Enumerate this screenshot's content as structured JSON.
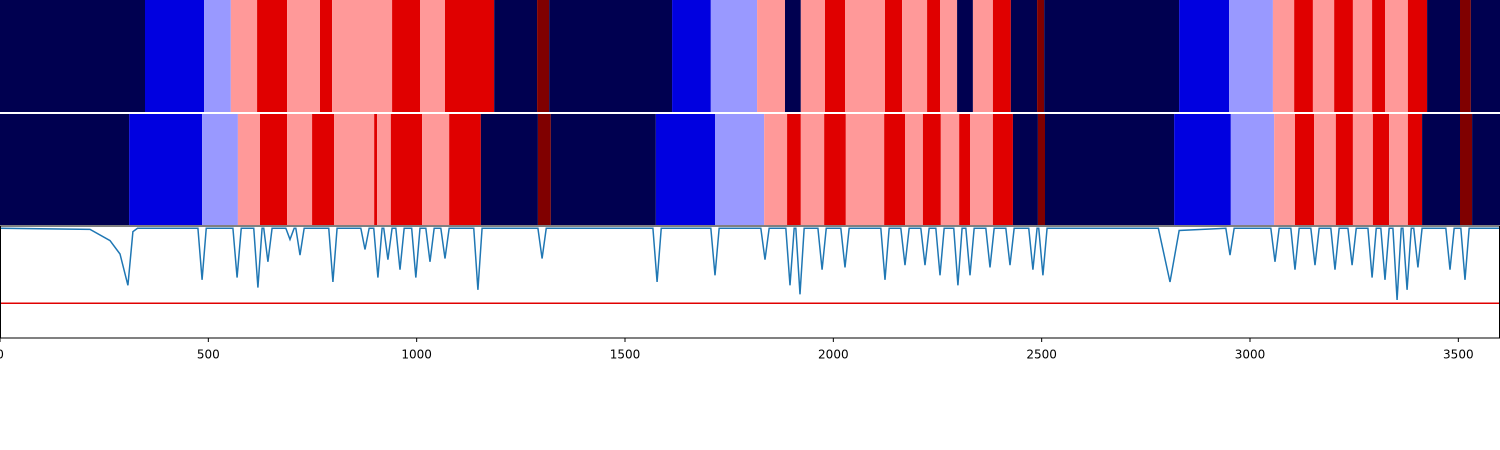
{
  "chart_data": [
    {
      "type": "segments",
      "xlim": [
        0,
        3600
      ],
      "boundaries": [
        0,
        348,
        490,
        554,
        617,
        689,
        768,
        797,
        941,
        1008,
        1068,
        1186,
        1289,
        1318,
        1613,
        1706,
        1817,
        1884,
        1922,
        1980,
        2028,
        2124,
        2165,
        2225,
        2256,
        2297,
        2335,
        2383,
        2426,
        2489,
        2506,
        2830,
        2950,
        3055,
        3106,
        3151,
        3202,
        3247,
        3293,
        3324,
        3379,
        3425,
        3504,
        3530,
        3600
      ],
      "colors": [
        "#000050",
        "#0000e0",
        "#9999ff",
        "#ff9999",
        "#e00000",
        "#ff9999",
        "#e00000",
        "#ff9999",
        "#e00000",
        "#ff9999",
        "#e00000",
        "#000050",
        "#800000",
        "#000050",
        "#0000e0",
        "#9999ff",
        "#ff9999",
        "#000050",
        "#ff9999",
        "#e00000",
        "#ff9999",
        "#e00000",
        "#ff9999",
        "#e00000",
        "#ff9999",
        "#000050",
        "#ff9999",
        "#e00000",
        "#000050",
        "#800000",
        "#000050",
        "#0000e0",
        "#9999ff",
        "#ff9999",
        "#e00000",
        "#ff9999",
        "#e00000",
        "#ff9999",
        "#e00000",
        "#ff9999",
        "#e00000",
        "#000050",
        "#800000",
        "#000050"
      ]
    },
    {
      "type": "segments",
      "xlim": [
        0,
        3600
      ],
      "boundaries": [
        0,
        310,
        485,
        571,
        624,
        689,
        749,
        802,
        898,
        905,
        938,
        1013,
        1078,
        1154,
        1291,
        1322,
        1574,
        1716,
        1834,
        1889,
        1922,
        1978,
        2030,
        2122,
        2172,
        2215,
        2258,
        2302,
        2328,
        2383,
        2431,
        2491,
        2508,
        2818,
        2954,
        3058,
        3108,
        3154,
        3206,
        3247,
        3295,
        3334,
        3379,
        3413,
        3504,
        3533,
        3600
      ],
      "colors": [
        "#000050",
        "#0000e0",
        "#9999ff",
        "#ff9999",
        "#e00000",
        "#ff9999",
        "#e00000",
        "#ff9999",
        "#e00000",
        "#ff9999",
        "#e00000",
        "#ff9999",
        "#e00000",
        "#000050",
        "#800000",
        "#000050",
        "#0000e0",
        "#9999ff",
        "#ff9999",
        "#e00000",
        "#ff9999",
        "#e00000",
        "#ff9999",
        "#e00000",
        "#ff9999",
        "#e00000",
        "#ff9999",
        "#e00000",
        "#ff9999",
        "#e00000",
        "#000050",
        "#800000",
        "#000050",
        "#0000e0",
        "#9999ff",
        "#ff9999",
        "#e00000",
        "#ff9999",
        "#e00000",
        "#ff9999",
        "#e00000",
        "#ff9999",
        "#e00000",
        "#000050",
        "#800000",
        "#000050"
      ]
    },
    {
      "type": "line",
      "xlim": [
        0,
        3600
      ],
      "ylim": [
        0,
        1
      ],
      "xticks": [
        0,
        500,
        1000,
        1500,
        2000,
        2500,
        3000,
        3500
      ],
      "threshold": 0.31,
      "threshold_color": "#e00000",
      "color": "#1f77b4",
      "x": [
        0,
        216,
        264,
        288,
        307,
        319,
        330,
        475,
        485,
        495,
        559,
        569,
        579,
        609,
        619,
        629,
        633,
        643,
        653,
        686,
        696,
        706,
        710,
        720,
        730,
        789,
        799,
        809,
        866,
        876,
        886,
        897,
        907,
        917,
        921,
        931,
        941,
        950,
        960,
        970,
        988,
        998,
        1008,
        1022,
        1032,
        1042,
        1058,
        1068,
        1078,
        1137,
        1147,
        1157,
        1291,
        1301,
        1311,
        1567,
        1577,
        1587,
        1706,
        1716,
        1726,
        1826,
        1836,
        1846,
        1886,
        1896,
        1906,
        1910,
        1920,
        1930,
        1963,
        1973,
        1983,
        2018,
        2028,
        2038,
        2114,
        2124,
        2134,
        2162,
        2172,
        2182,
        2210,
        2220,
        2230,
        2246,
        2256,
        2266,
        2289,
        2299,
        2309,
        2318,
        2328,
        2338,
        2366,
        2376,
        2386,
        2414,
        2424,
        2434,
        2469,
        2479,
        2489,
        2493,
        2503,
        2513,
        2780,
        2808,
        2830,
        2942,
        2952,
        2962,
        3050,
        3060,
        3070,
        3098,
        3108,
        3118,
        3146,
        3156,
        3166,
        3194,
        3204,
        3214,
        3235,
        3245,
        3255,
        3283,
        3293,
        3303,
        3314,
        3324,
        3334,
        3343,
        3353,
        3363,
        3367,
        3377,
        3387,
        3393,
        3403,
        3413,
        3470,
        3480,
        3490,
        3506,
        3516,
        3526,
        3600
      ],
      "values": [
        0.98,
        0.97,
        0.87,
        0.75,
        0.47,
        0.95,
        0.98,
        0.98,
        0.52,
        0.98,
        0.98,
        0.54,
        0.98,
        0.98,
        0.45,
        0.98,
        0.98,
        0.68,
        0.98,
        0.98,
        0.88,
        0.98,
        0.98,
        0.74,
        0.98,
        0.98,
        0.5,
        0.98,
        0.98,
        0.79,
        0.98,
        0.98,
        0.54,
        0.98,
        0.98,
        0.7,
        0.98,
        0.98,
        0.61,
        0.98,
        0.98,
        0.54,
        0.98,
        0.98,
        0.68,
        0.98,
        0.98,
        0.71,
        0.98,
        0.98,
        0.43,
        0.98,
        0.98,
        0.71,
        0.98,
        0.98,
        0.5,
        0.98,
        0.98,
        0.56,
        0.98,
        0.98,
        0.7,
        0.98,
        0.98,
        0.47,
        0.98,
        0.98,
        0.39,
        0.98,
        0.98,
        0.61,
        0.98,
        0.98,
        0.63,
        0.98,
        0.98,
        0.52,
        0.98,
        0.98,
        0.65,
        0.98,
        0.98,
        0.65,
        0.98,
        0.98,
        0.56,
        0.98,
        0.98,
        0.47,
        0.98,
        0.98,
        0.56,
        0.98,
        0.98,
        0.63,
        0.98,
        0.98,
        0.65,
        0.98,
        0.98,
        0.61,
        0.98,
        0.98,
        0.56,
        0.98,
        0.98,
        0.5,
        0.96,
        0.98,
        0.74,
        0.98,
        0.98,
        0.68,
        0.98,
        0.98,
        0.61,
        0.98,
        0.98,
        0.65,
        0.98,
        0.98,
        0.61,
        0.98,
        0.98,
        0.65,
        0.98,
        0.98,
        0.54,
        0.98,
        0.98,
        0.52,
        0.98,
        0.98,
        0.34,
        0.98,
        0.98,
        0.43,
        0.98,
        0.98,
        0.63,
        0.98,
        0.98,
        0.61,
        0.98,
        0.98,
        0.52,
        0.98,
        0.98
      ]
    }
  ]
}
